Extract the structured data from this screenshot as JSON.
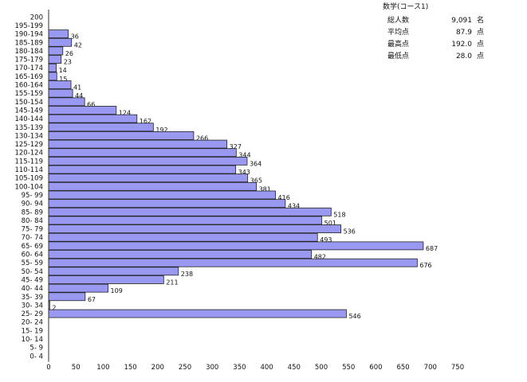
{
  "stats_panel": {
    "title": "数学(コース1)",
    "rows": [
      {
        "label": "総人数",
        "value": "9,091",
        "unit": "名"
      },
      {
        "label": "平均点",
        "value": "87.9",
        "unit": "点"
      },
      {
        "label": "最高点",
        "value": "192.0",
        "unit": "点"
      },
      {
        "label": "最低点",
        "value": "28.0",
        "unit": "点"
      }
    ]
  },
  "colors": {
    "bar_fill": "#9999f2",
    "bar_stroke": "#222222",
    "axis": "#333333"
  },
  "chart_data": {
    "type": "bar",
    "orientation": "horizontal",
    "title": "数学(コース1)",
    "categories": [
      "200",
      "195-199",
      "190-194",
      "185-189",
      "180-184",
      "175-179",
      "170-174",
      "165-169",
      "160-164",
      "155-159",
      "150-154",
      "145-149",
      "140-144",
      "135-139",
      "130-134",
      "125-129",
      "120-124",
      "115-119",
      "110-114",
      "105-109",
      "100-104",
      "95- 99",
      "90- 94",
      "85- 89",
      "80- 84",
      "75- 79",
      "70- 74",
      "65- 69",
      "60- 64",
      "55- 59",
      "50- 54",
      "45- 49",
      "40- 44",
      "35- 39",
      "30- 34",
      "25- 29",
      "20- 24",
      "15- 19",
      "10- 14",
      "5- 9",
      "0- 4"
    ],
    "values": [
      null,
      null,
      36,
      42,
      26,
      23,
      14,
      15,
      41,
      44,
      66,
      124,
      162,
      192,
      266,
      327,
      344,
      364,
      343,
      365,
      381,
      416,
      434,
      518,
      501,
      536,
      493,
      687,
      482,
      676,
      238,
      211,
      109,
      67,
      2,
      546,
      null,
      null,
      null,
      null,
      null
    ],
    "xlim": [
      0,
      750
    ],
    "xticks": [
      0,
      50,
      100,
      150,
      200,
      250,
      300,
      350,
      400,
      450,
      500,
      550,
      600,
      650,
      700,
      750
    ],
    "grid": false
  }
}
